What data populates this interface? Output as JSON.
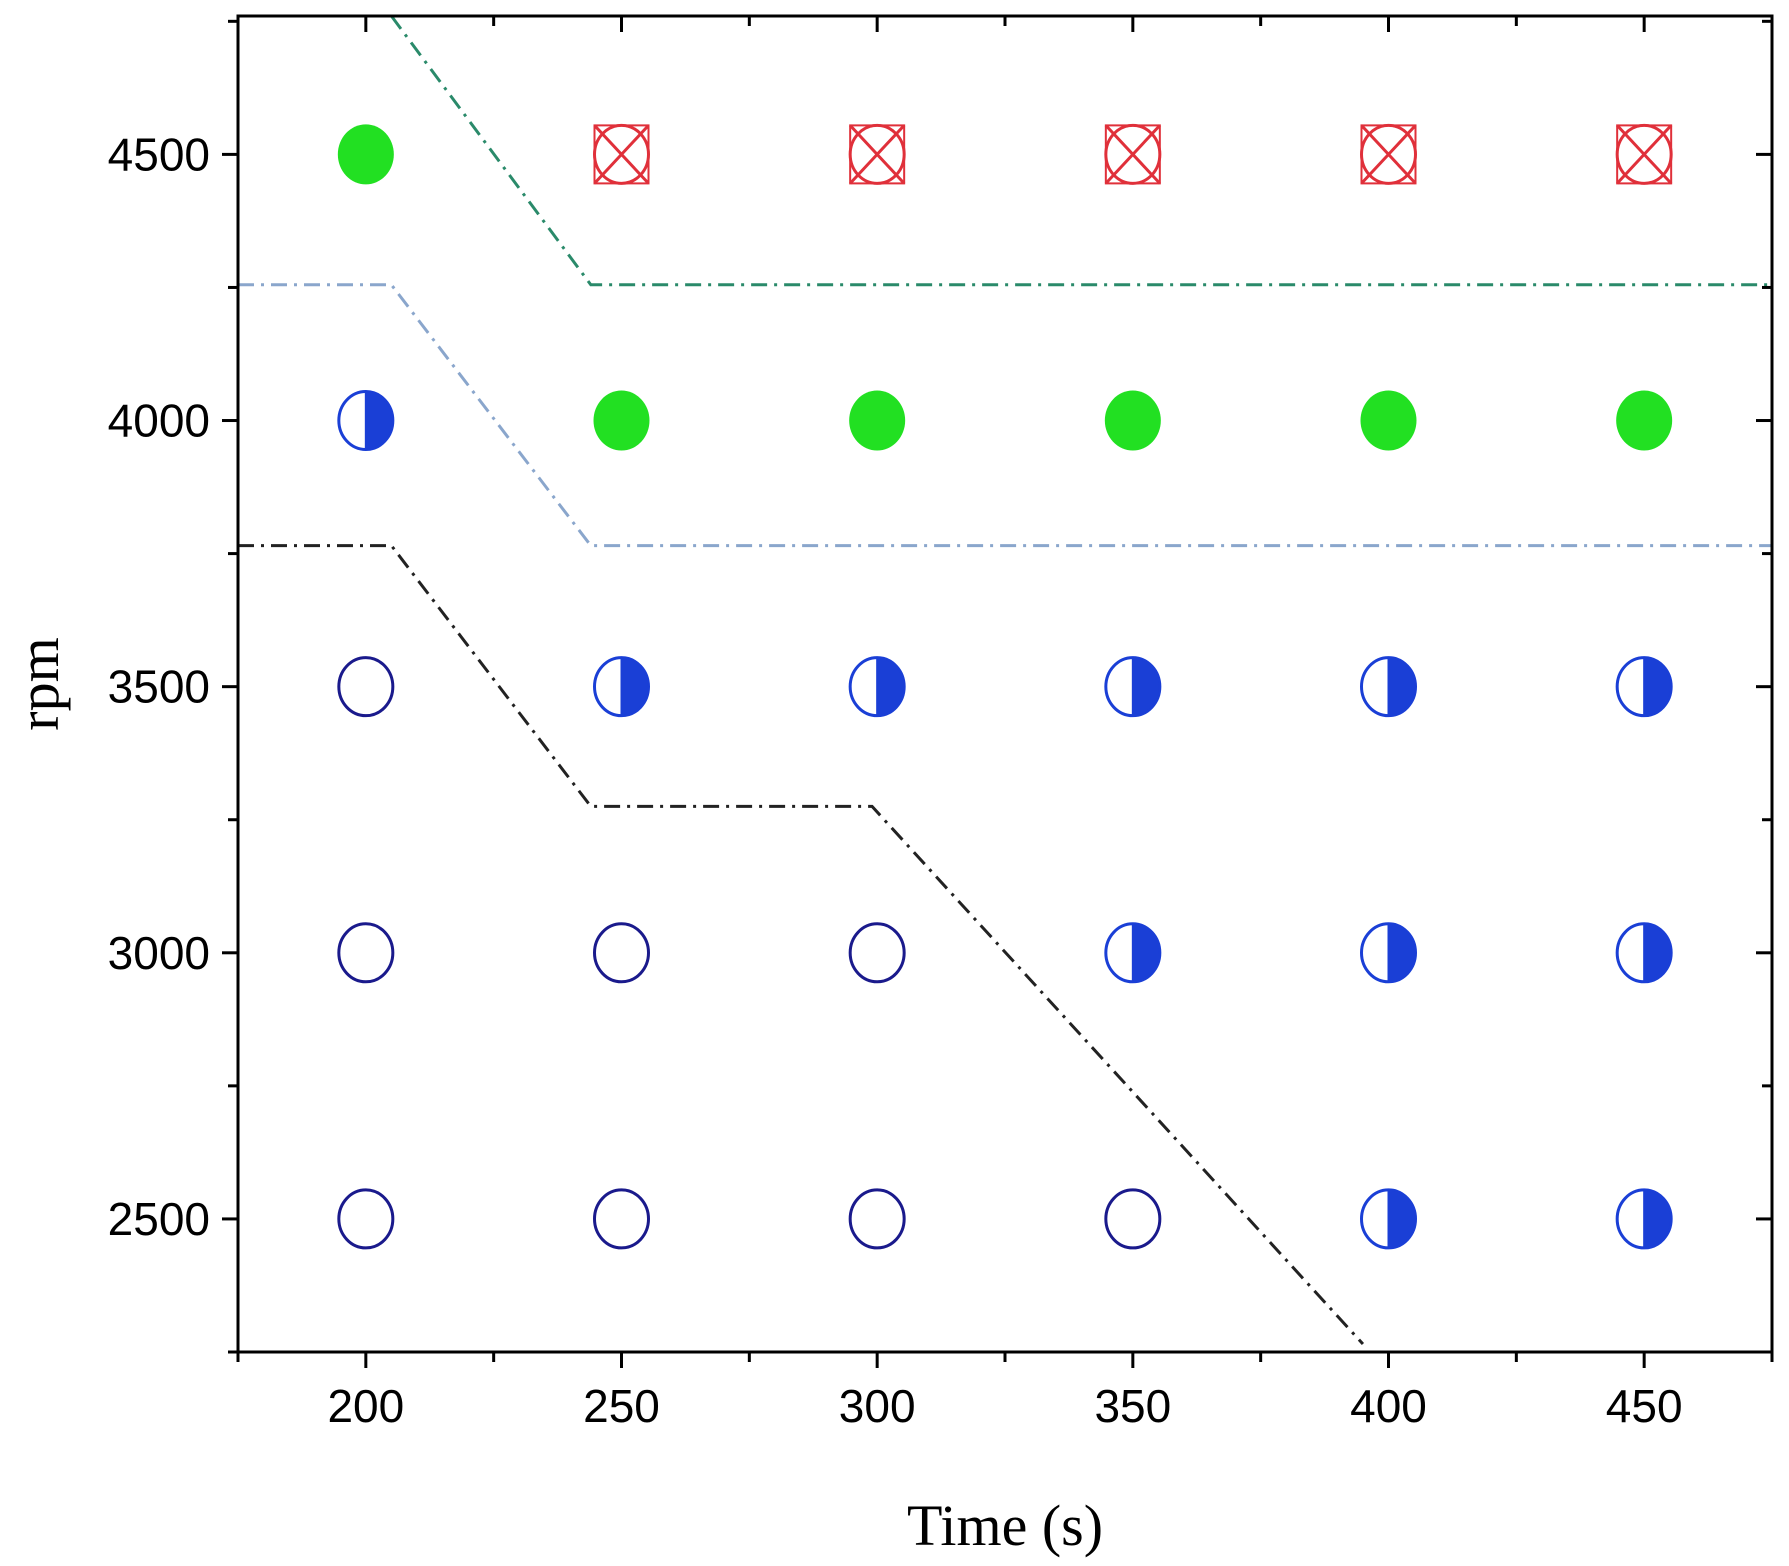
{
  "chart_data": {
    "type": "scatter",
    "title": "",
    "xlabel": "Time (s)",
    "ylabel": "rpm",
    "xlim": [
      175,
      475
    ],
    "ylim": [
      2250,
      4760
    ],
    "x_ticks": [
      200,
      250,
      300,
      350,
      400,
      450
    ],
    "y_ticks": [
      2500,
      3000,
      3500,
      4000,
      4500
    ],
    "x_tick_labels": [
      "200",
      "250",
      "300",
      "350",
      "400",
      "450"
    ],
    "y_tick_labels": [
      "2500",
      "3000",
      "3500",
      "4000",
      "4500"
    ],
    "grid": false,
    "legend": "none",
    "categories_of_markers": [
      "open-circle",
      "half-filled-circle",
      "filled-circle",
      "crossed-circle"
    ],
    "marker_colors": {
      "open-circle": "#1a1a8c",
      "half-filled-circle": "#1a3fd6",
      "filled-circle": "#22e022",
      "crossed-circle": "#e0303a"
    },
    "points": [
      {
        "x": 200,
        "y": 2500,
        "marker": "open-circle"
      },
      {
        "x": 250,
        "y": 2500,
        "marker": "open-circle"
      },
      {
        "x": 300,
        "y": 2500,
        "marker": "open-circle"
      },
      {
        "x": 350,
        "y": 2500,
        "marker": "open-circle"
      },
      {
        "x": 400,
        "y": 2500,
        "marker": "half-filled-circle"
      },
      {
        "x": 450,
        "y": 2500,
        "marker": "half-filled-circle"
      },
      {
        "x": 200,
        "y": 3000,
        "marker": "open-circle"
      },
      {
        "x": 250,
        "y": 3000,
        "marker": "open-circle"
      },
      {
        "x": 300,
        "y": 3000,
        "marker": "open-circle"
      },
      {
        "x": 350,
        "y": 3000,
        "marker": "half-filled-circle"
      },
      {
        "x": 400,
        "y": 3000,
        "marker": "half-filled-circle"
      },
      {
        "x": 450,
        "y": 3000,
        "marker": "half-filled-circle"
      },
      {
        "x": 200,
        "y": 3500,
        "marker": "open-circle"
      },
      {
        "x": 250,
        "y": 3500,
        "marker": "half-filled-circle"
      },
      {
        "x": 300,
        "y": 3500,
        "marker": "half-filled-circle"
      },
      {
        "x": 350,
        "y": 3500,
        "marker": "half-filled-circle"
      },
      {
        "x": 400,
        "y": 3500,
        "marker": "half-filled-circle"
      },
      {
        "x": 450,
        "y": 3500,
        "marker": "half-filled-circle"
      },
      {
        "x": 200,
        "y": 4000,
        "marker": "half-filled-circle"
      },
      {
        "x": 250,
        "y": 4000,
        "marker": "filled-circle"
      },
      {
        "x": 300,
        "y": 4000,
        "marker": "filled-circle"
      },
      {
        "x": 350,
        "y": 4000,
        "marker": "filled-circle"
      },
      {
        "x": 400,
        "y": 4000,
        "marker": "filled-circle"
      },
      {
        "x": 450,
        "y": 4000,
        "marker": "filled-circle"
      },
      {
        "x": 200,
        "y": 4500,
        "marker": "filled-circle"
      },
      {
        "x": 250,
        "y": 4500,
        "marker": "crossed-circle"
      },
      {
        "x": 300,
        "y": 4500,
        "marker": "crossed-circle"
      },
      {
        "x": 350,
        "y": 4500,
        "marker": "crossed-circle"
      },
      {
        "x": 400,
        "y": 4500,
        "marker": "crossed-circle"
      },
      {
        "x": 450,
        "y": 4500,
        "marker": "crossed-circle"
      }
    ],
    "boundary_lines": [
      {
        "name": "green-boundary",
        "color": "#2a8a6a",
        "style": "dash-dot",
        "points": [
          [
            205,
            4760
          ],
          [
            244,
            4255
          ],
          [
            475,
            4255
          ]
        ]
      },
      {
        "name": "lightblue-boundary",
        "color": "#8aa6cc",
        "style": "dash-dot",
        "points": [
          [
            175,
            4255
          ],
          [
            205,
            4255
          ],
          [
            244,
            3765
          ],
          [
            475,
            3765
          ]
        ]
      },
      {
        "name": "black-boundary",
        "color": "#222222",
        "style": "dash-dot",
        "points": [
          [
            175,
            3765
          ],
          [
            205,
            3765
          ],
          [
            244,
            3275
          ],
          [
            299,
            3275
          ],
          [
            395,
            2265
          ]
        ]
      }
    ]
  }
}
